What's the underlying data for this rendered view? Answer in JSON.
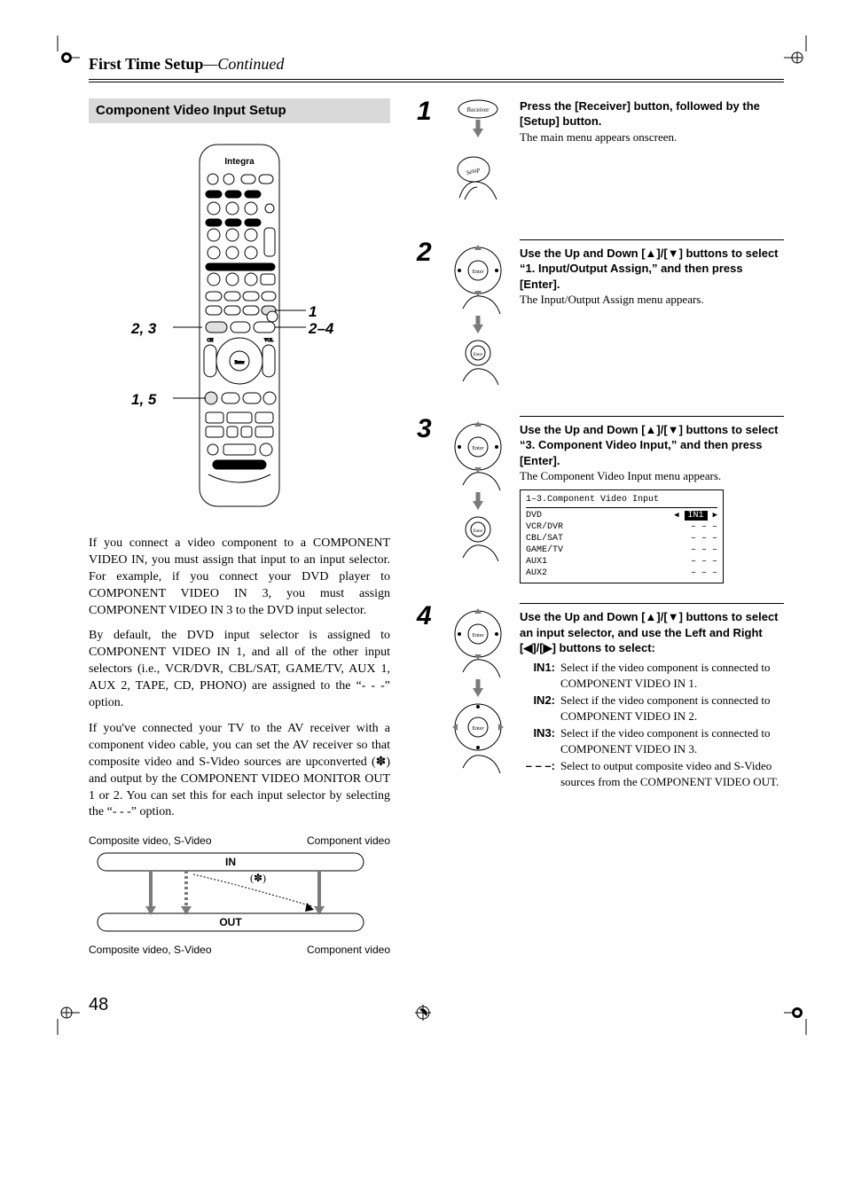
{
  "header": {
    "title": "First Time Setup",
    "suffix": "—Continued"
  },
  "section_banner": "Component Video Input Setup",
  "remote": {
    "brand": "Integra",
    "callouts": {
      "r1": "1",
      "r24": "2–4",
      "l23": "2, 3",
      "l15": "1, 5"
    }
  },
  "paragraphs": {
    "p1": "If you connect a video component to a COMPONENT VIDEO IN, you must assign that input to an input selector. For example, if you connect your DVD player to COMPONENT VIDEO IN 3, you must assign COMPONENT VIDEO IN 3 to the DVD input selector.",
    "p2": "By default, the DVD input selector is assigned to COMPONENT VIDEO IN 1, and all of the other input selectors (i.e., VCR/DVR, CBL/SAT, GAME/TV, AUX 1, AUX 2, TAPE, CD, PHONO) are assigned to the “- - -” option.",
    "p3": "If you've connected your TV to the AV receiver with a component video cable, you can set the AV receiver so that composite video and S-Video sources are upconverted (✽) and output by the COMPONENT VIDEO MONITOR OUT 1 or 2. You can set this for each input selector by selecting the “- - -” option."
  },
  "flow": {
    "top_left": "Composite video, S-Video",
    "top_right": "Component video",
    "in": "IN",
    "star": "(✽)",
    "out": "OUT",
    "bottom_left": "Composite video, S-Video",
    "bottom_right": "Component video"
  },
  "steps": [
    {
      "num": "1",
      "bold": "Press the [Receiver] button, followed by the [Setup] button.",
      "plain": "The main menu appears onscreen."
    },
    {
      "num": "2",
      "bold": "Use the Up and Down [▲]/[▼] buttons to select “1. Input/Output Assign,” and then press [Enter].",
      "plain": "The Input/Output Assign menu appears."
    },
    {
      "num": "3",
      "bold": "Use the Up and Down [▲]/[▼] buttons to select “3. Component Video Input,” and then press [Enter].",
      "plain": "The Component Video Input menu appears."
    },
    {
      "num": "4",
      "bold": "Use the Up and Down [▲]/[▼] buttons to select an input selector, and use the Left and Right [◀]/[▶] buttons to select:",
      "plain": ""
    }
  ],
  "menu": {
    "title": "1–3.Component Video Input",
    "rows": [
      {
        "label": "DVD",
        "value": "IN1",
        "hl": true
      },
      {
        "label": "VCR/DVR",
        "value": "– – –"
      },
      {
        "label": "CBL/SAT",
        "value": "– – –"
      },
      {
        "label": "GAME/TV",
        "value": "– – –"
      },
      {
        "label": "AUX1",
        "value": "– – –"
      },
      {
        "label": "AUX2",
        "value": "– – –"
      }
    ]
  },
  "options": [
    {
      "key": "IN1:",
      "desc": "Select if the video component is connected to COMPONENT VIDEO IN 1."
    },
    {
      "key": "IN2:",
      "desc": "Select if the video component is connected to COMPONENT VIDEO IN 2."
    },
    {
      "key": "IN3:",
      "desc": "Select if the video component is connected to COMPONENT VIDEO IN 3."
    },
    {
      "key": "– – –:",
      "desc": "Select to output composite video and S-Video sources from the COMPONENT VIDEO OUT."
    }
  ],
  "page_number": "48"
}
